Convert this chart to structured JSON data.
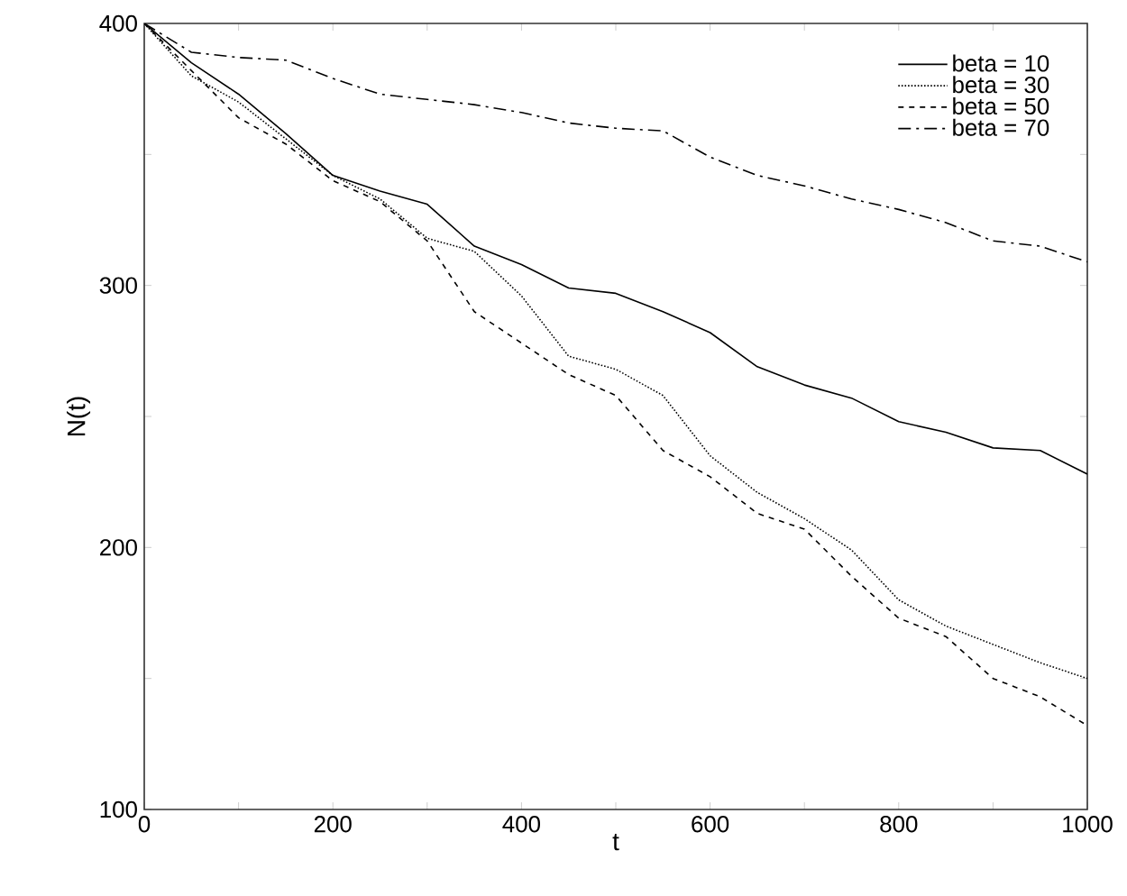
{
  "chart_data": {
    "type": "line",
    "xlabel": "t",
    "ylabel": "N(t)",
    "xlim": [
      0,
      1000
    ],
    "ylim": [
      100,
      400
    ],
    "xticks": [
      0,
      {
        "value": 100,
        "label": null
      },
      200,
      {
        "value": 300,
        "label": null
      },
      400,
      {
        "value": 500,
        "label": null
      },
      600,
      {
        "value": 700,
        "label": null
      },
      800,
      {
        "value": 900,
        "label": null
      },
      1000
    ],
    "yticks": [
      100,
      {
        "value": 150,
        "label": null
      },
      200,
      {
        "value": 250,
        "label": null
      },
      300,
      {
        "value": 350,
        "label": null
      },
      400
    ],
    "x": [
      0,
      50,
      100,
      150,
      200,
      250,
      300,
      350,
      400,
      450,
      500,
      550,
      600,
      650,
      700,
      750,
      800,
      850,
      900,
      950,
      1000
    ],
    "legend": "top right",
    "grid": false,
    "series": [
      {
        "name": "beta = 10",
        "color": "#000000",
        "line_style": "solid",
        "values": [
          400,
          385,
          373,
          358,
          342,
          336,
          331,
          315,
          308,
          299,
          297,
          290,
          282,
          269,
          262,
          257,
          248,
          244,
          238,
          237,
          228
        ]
      },
      {
        "name": "beta = 30",
        "color": "#000000",
        "line_style": "dotted",
        "values": [
          400,
          380,
          370,
          356,
          342,
          333,
          318,
          313,
          296,
          273,
          268,
          258,
          235,
          221,
          211,
          199,
          180,
          170,
          163,
          156,
          150
        ]
      },
      {
        "name": "beta = 50",
        "color": "#000000",
        "line_style": "dashed",
        "values": [
          400,
          382,
          364,
          354,
          340,
          332,
          317,
          290,
          278,
          266,
          258,
          237,
          227,
          213,
          207,
          189,
          173,
          166,
          150,
          143,
          132
        ]
      },
      {
        "name": "beta = 70",
        "color": "#000000",
        "line_style": "dashdot",
        "values": [
          400,
          389,
          387,
          386,
          379,
          373,
          371,
          369,
          366,
          362,
          360,
          359,
          349,
          342,
          338,
          333,
          329,
          324,
          317,
          315,
          309
        ]
      }
    ]
  }
}
